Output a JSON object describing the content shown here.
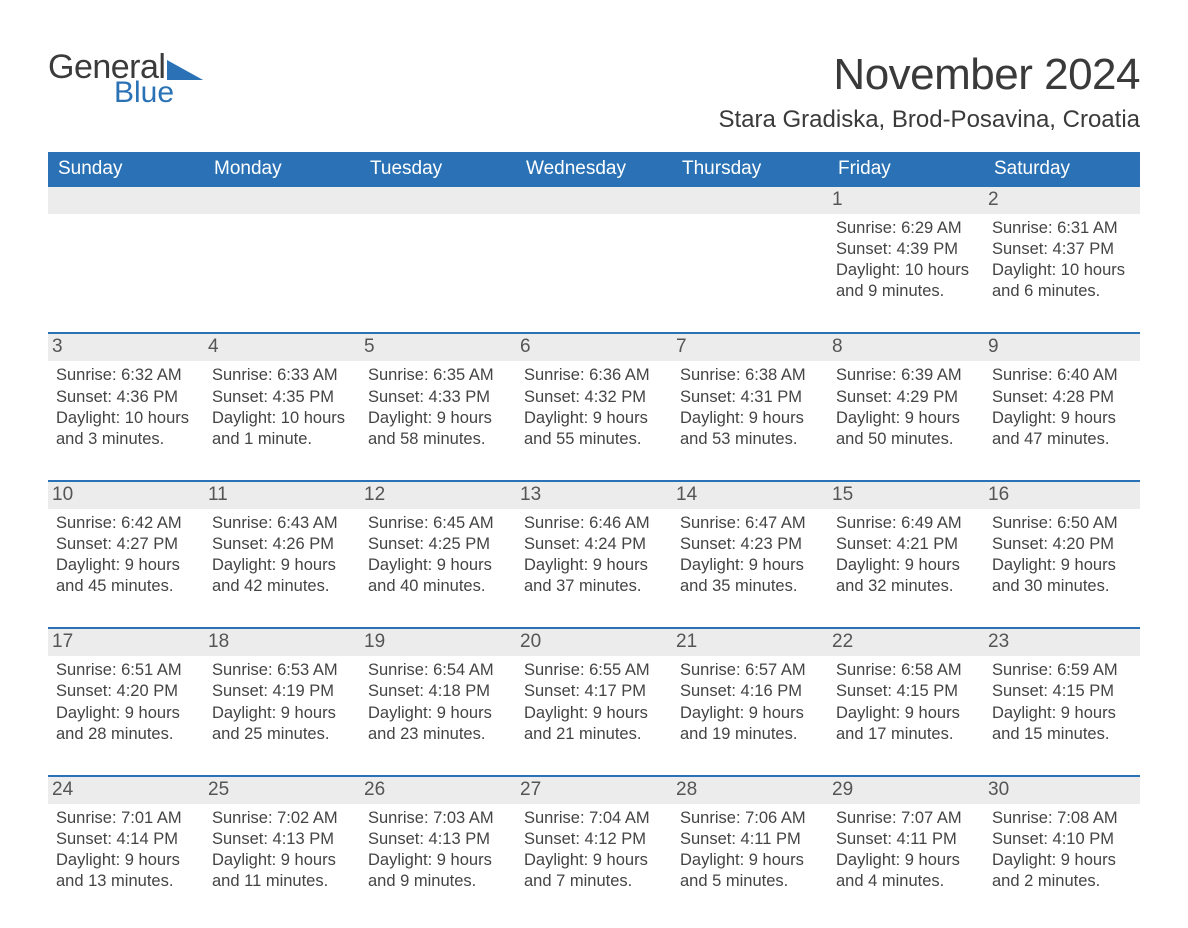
{
  "logo": {
    "word1": "General",
    "word2": "Blue",
    "word1_color": "#3b3b3b",
    "word2_color": "#2a72b5",
    "triangle_color": "#2a72b5"
  },
  "header": {
    "title": "November 2024",
    "location": "Stara Gradiska, Brod-Posavina, Croatia"
  },
  "colors": {
    "header_bg": "#2a72b5",
    "header_text": "#ffffff",
    "daynum_band_bg": "#ececec",
    "week_divider": "#2a72b5",
    "text": "#404040",
    "background": "#ffffff"
  },
  "typography": {
    "title_fontsize": 44,
    "location_fontsize": 24,
    "dayhead_fontsize": 19,
    "daynum_fontsize": 19,
    "body_fontsize": 16.5
  },
  "dayheads": [
    "Sunday",
    "Monday",
    "Tuesday",
    "Wednesday",
    "Thursday",
    "Friday",
    "Saturday"
  ],
  "weeks": [
    [
      {
        "empty": true
      },
      {
        "empty": true
      },
      {
        "empty": true
      },
      {
        "empty": true
      },
      {
        "empty": true
      },
      {
        "day": "1",
        "sunrise": "Sunrise: 6:29 AM",
        "sunset": "Sunset: 4:39 PM",
        "daylight1": "Daylight: 10 hours",
        "daylight2": "and 9 minutes."
      },
      {
        "day": "2",
        "sunrise": "Sunrise: 6:31 AM",
        "sunset": "Sunset: 4:37 PM",
        "daylight1": "Daylight: 10 hours",
        "daylight2": "and 6 minutes."
      }
    ],
    [
      {
        "day": "3",
        "sunrise": "Sunrise: 6:32 AM",
        "sunset": "Sunset: 4:36 PM",
        "daylight1": "Daylight: 10 hours",
        "daylight2": "and 3 minutes."
      },
      {
        "day": "4",
        "sunrise": "Sunrise: 6:33 AM",
        "sunset": "Sunset: 4:35 PM",
        "daylight1": "Daylight: 10 hours",
        "daylight2": "and 1 minute."
      },
      {
        "day": "5",
        "sunrise": "Sunrise: 6:35 AM",
        "sunset": "Sunset: 4:33 PM",
        "daylight1": "Daylight: 9 hours",
        "daylight2": "and 58 minutes."
      },
      {
        "day": "6",
        "sunrise": "Sunrise: 6:36 AM",
        "sunset": "Sunset: 4:32 PM",
        "daylight1": "Daylight: 9 hours",
        "daylight2": "and 55 minutes."
      },
      {
        "day": "7",
        "sunrise": "Sunrise: 6:38 AM",
        "sunset": "Sunset: 4:31 PM",
        "daylight1": "Daylight: 9 hours",
        "daylight2": "and 53 minutes."
      },
      {
        "day": "8",
        "sunrise": "Sunrise: 6:39 AM",
        "sunset": "Sunset: 4:29 PM",
        "daylight1": "Daylight: 9 hours",
        "daylight2": "and 50 minutes."
      },
      {
        "day": "9",
        "sunrise": "Sunrise: 6:40 AM",
        "sunset": "Sunset: 4:28 PM",
        "daylight1": "Daylight: 9 hours",
        "daylight2": "and 47 minutes."
      }
    ],
    [
      {
        "day": "10",
        "sunrise": "Sunrise: 6:42 AM",
        "sunset": "Sunset: 4:27 PM",
        "daylight1": "Daylight: 9 hours",
        "daylight2": "and 45 minutes."
      },
      {
        "day": "11",
        "sunrise": "Sunrise: 6:43 AM",
        "sunset": "Sunset: 4:26 PM",
        "daylight1": "Daylight: 9 hours",
        "daylight2": "and 42 minutes."
      },
      {
        "day": "12",
        "sunrise": "Sunrise: 6:45 AM",
        "sunset": "Sunset: 4:25 PM",
        "daylight1": "Daylight: 9 hours",
        "daylight2": "and 40 minutes."
      },
      {
        "day": "13",
        "sunrise": "Sunrise: 6:46 AM",
        "sunset": "Sunset: 4:24 PM",
        "daylight1": "Daylight: 9 hours",
        "daylight2": "and 37 minutes."
      },
      {
        "day": "14",
        "sunrise": "Sunrise: 6:47 AM",
        "sunset": "Sunset: 4:23 PM",
        "daylight1": "Daylight: 9 hours",
        "daylight2": "and 35 minutes."
      },
      {
        "day": "15",
        "sunrise": "Sunrise: 6:49 AM",
        "sunset": "Sunset: 4:21 PM",
        "daylight1": "Daylight: 9 hours",
        "daylight2": "and 32 minutes."
      },
      {
        "day": "16",
        "sunrise": "Sunrise: 6:50 AM",
        "sunset": "Sunset: 4:20 PM",
        "daylight1": "Daylight: 9 hours",
        "daylight2": "and 30 minutes."
      }
    ],
    [
      {
        "day": "17",
        "sunrise": "Sunrise: 6:51 AM",
        "sunset": "Sunset: 4:20 PM",
        "daylight1": "Daylight: 9 hours",
        "daylight2": "and 28 minutes."
      },
      {
        "day": "18",
        "sunrise": "Sunrise: 6:53 AM",
        "sunset": "Sunset: 4:19 PM",
        "daylight1": "Daylight: 9 hours",
        "daylight2": "and 25 minutes."
      },
      {
        "day": "19",
        "sunrise": "Sunrise: 6:54 AM",
        "sunset": "Sunset: 4:18 PM",
        "daylight1": "Daylight: 9 hours",
        "daylight2": "and 23 minutes."
      },
      {
        "day": "20",
        "sunrise": "Sunrise: 6:55 AM",
        "sunset": "Sunset: 4:17 PM",
        "daylight1": "Daylight: 9 hours",
        "daylight2": "and 21 minutes."
      },
      {
        "day": "21",
        "sunrise": "Sunrise: 6:57 AM",
        "sunset": "Sunset: 4:16 PM",
        "daylight1": "Daylight: 9 hours",
        "daylight2": "and 19 minutes."
      },
      {
        "day": "22",
        "sunrise": "Sunrise: 6:58 AM",
        "sunset": "Sunset: 4:15 PM",
        "daylight1": "Daylight: 9 hours",
        "daylight2": "and 17 minutes."
      },
      {
        "day": "23",
        "sunrise": "Sunrise: 6:59 AM",
        "sunset": "Sunset: 4:15 PM",
        "daylight1": "Daylight: 9 hours",
        "daylight2": "and 15 minutes."
      }
    ],
    [
      {
        "day": "24",
        "sunrise": "Sunrise: 7:01 AM",
        "sunset": "Sunset: 4:14 PM",
        "daylight1": "Daylight: 9 hours",
        "daylight2": "and 13 minutes."
      },
      {
        "day": "25",
        "sunrise": "Sunrise: 7:02 AM",
        "sunset": "Sunset: 4:13 PM",
        "daylight1": "Daylight: 9 hours",
        "daylight2": "and 11 minutes."
      },
      {
        "day": "26",
        "sunrise": "Sunrise: 7:03 AM",
        "sunset": "Sunset: 4:13 PM",
        "daylight1": "Daylight: 9 hours",
        "daylight2": "and 9 minutes."
      },
      {
        "day": "27",
        "sunrise": "Sunrise: 7:04 AM",
        "sunset": "Sunset: 4:12 PM",
        "daylight1": "Daylight: 9 hours",
        "daylight2": "and 7 minutes."
      },
      {
        "day": "28",
        "sunrise": "Sunrise: 7:06 AM",
        "sunset": "Sunset: 4:11 PM",
        "daylight1": "Daylight: 9 hours",
        "daylight2": "and 5 minutes."
      },
      {
        "day": "29",
        "sunrise": "Sunrise: 7:07 AM",
        "sunset": "Sunset: 4:11 PM",
        "daylight1": "Daylight: 9 hours",
        "daylight2": "and 4 minutes."
      },
      {
        "day": "30",
        "sunrise": "Sunrise: 7:08 AM",
        "sunset": "Sunset: 4:10 PM",
        "daylight1": "Daylight: 9 hours",
        "daylight2": "and 2 minutes."
      }
    ]
  ]
}
